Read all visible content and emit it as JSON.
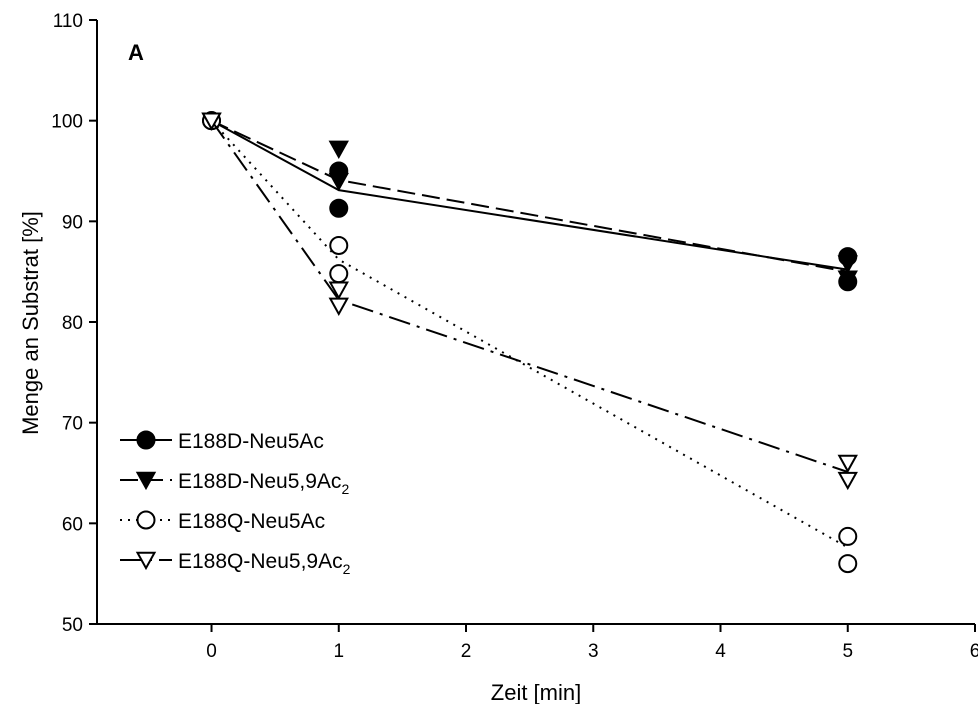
{
  "chart_data": {
    "type": "line",
    "panel_label": "A",
    "xlabel": "Zeit [min]",
    "ylabel": "Menge an Substrat [%]",
    "xlim": [
      -0.9,
      6
    ],
    "ylim": [
      50,
      110
    ],
    "xticks": [
      0,
      1,
      2,
      3,
      4,
      5,
      6
    ],
    "yticks": [
      50,
      60,
      70,
      80,
      90,
      100,
      110
    ],
    "grid": false,
    "legend_position": "bottom-left",
    "series": [
      {
        "name": "E188D-Neu5Ac",
        "legend_text": "E188D-Neu5Ac",
        "legend_sub": "",
        "marker": "circle-filled",
        "line": "solid",
        "points": [
          [
            0,
            100
          ],
          [
            1,
            95.0
          ],
          [
            1,
            91.3
          ],
          [
            5,
            86.5
          ],
          [
            5,
            84.0
          ]
        ],
        "line_points": [
          [
            0,
            100
          ],
          [
            1,
            93.1
          ],
          [
            5,
            85.2
          ]
        ]
      },
      {
        "name": "E188D-Neu5,9Ac2",
        "legend_text": "E188D-Neu5,9Ac",
        "legend_sub": "2",
        "marker": "triangle-down-filled",
        "line": "dashed",
        "points": [
          [
            0,
            100
          ],
          [
            1,
            97.2
          ],
          [
            1,
            94.0
          ],
          [
            5,
            85.8
          ],
          [
            5,
            84.3
          ]
        ],
        "line_points": [
          [
            0,
            100
          ],
          [
            1,
            94.1
          ],
          [
            5,
            85.0
          ]
        ]
      },
      {
        "name": "E188Q-Neu5Ac",
        "legend_text": "E188Q-Neu5Ac",
        "legend_sub": "",
        "marker": "circle-open",
        "line": "dotted",
        "points": [
          [
            0,
            100
          ],
          [
            1,
            87.6
          ],
          [
            1,
            84.8
          ],
          [
            5,
            58.7
          ],
          [
            5,
            56.0
          ]
        ],
        "line_points": [
          [
            0,
            100
          ],
          [
            1,
            86.2
          ],
          [
            5,
            57.6
          ]
        ]
      },
      {
        "name": "E188Q-Neu5,9Ac2",
        "legend_text": "E188Q-Neu5,9Ac",
        "legend_sub": "2",
        "marker": "triangle-down-open",
        "line": "dashdot",
        "points": [
          [
            0,
            100
          ],
          [
            1,
            83.2
          ],
          [
            1,
            81.6
          ],
          [
            5,
            66.0
          ],
          [
            5,
            64.3
          ]
        ],
        "line_points": [
          [
            0,
            100
          ],
          [
            1,
            82.2
          ],
          [
            5,
            65.1
          ]
        ]
      }
    ]
  }
}
